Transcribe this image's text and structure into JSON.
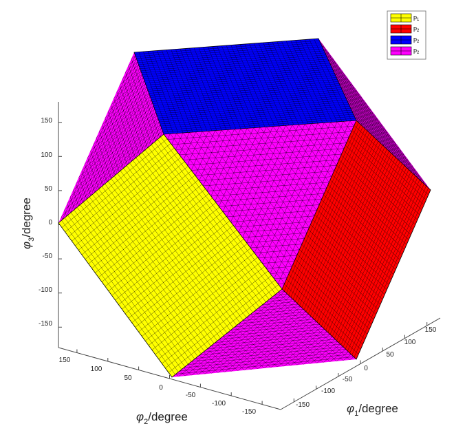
{
  "chart_data": {
    "type": "surface3d",
    "title": "",
    "xlabel": {
      "sym": "φ",
      "sub": "1",
      "rest": "/degree"
    },
    "ylabel": {
      "sym": "φ",
      "sub": "2",
      "rest": "/degree"
    },
    "zlabel": {
      "sym": "φ",
      "sub": "3",
      "rest": "/degree"
    },
    "xlim": [
      -180,
      180
    ],
    "ylim": [
      -180,
      180
    ],
    "zlim": [
      -180,
      180
    ],
    "x_ticks": [
      "-150",
      "-100",
      "-50",
      "0",
      "50",
      "100",
      "150"
    ],
    "y_ticks": [
      "150",
      "100",
      "50",
      "0",
      "-50",
      "-100",
      "-150"
    ],
    "z_ticks": [
      "150",
      "100",
      "50",
      "0",
      "-50",
      "-100",
      "-150"
    ],
    "legend_position": "top-right",
    "surfaces": [
      {
        "name": "p",
        "sub": "1",
        "color": "#ffff00"
      },
      {
        "name": "p",
        "sub": "2",
        "color": "#ff0000"
      },
      {
        "name": "p",
        "sub": "2",
        "color": "#0000ff"
      },
      {
        "name": "p",
        "sub": "2",
        "color": "#ff00ff"
      }
    ]
  }
}
